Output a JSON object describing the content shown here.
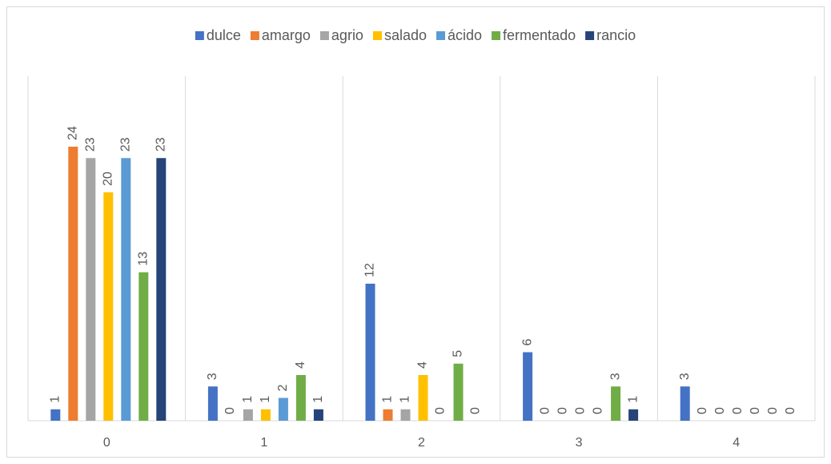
{
  "chart_data": {
    "type": "bar",
    "categories": [
      "0",
      "1",
      "2",
      "3",
      "4"
    ],
    "series": [
      {
        "name": "dulce",
        "color": "#4472c4",
        "values": [
          1,
          3,
          12,
          6,
          3
        ]
      },
      {
        "name": "amargo",
        "color": "#ed7d31",
        "values": [
          24,
          0,
          1,
          0,
          0
        ]
      },
      {
        "name": "agrio",
        "color": "#a5a5a5",
        "values": [
          23,
          1,
          1,
          0,
          0
        ]
      },
      {
        "name": "salado",
        "color": "#ffc000",
        "values": [
          20,
          1,
          4,
          0,
          0
        ]
      },
      {
        "name": "ácido",
        "color": "#5b9bd5",
        "values": [
          23,
          2,
          0,
          0,
          0
        ]
      },
      {
        "name": "fermentado",
        "color": "#70ad47",
        "values": [
          13,
          4,
          5,
          3,
          0
        ]
      },
      {
        "name": "rancio",
        "color": "#264478",
        "values": [
          23,
          1,
          0,
          1,
          0
        ]
      }
    ],
    "legend": "top",
    "data_labels": true
  }
}
